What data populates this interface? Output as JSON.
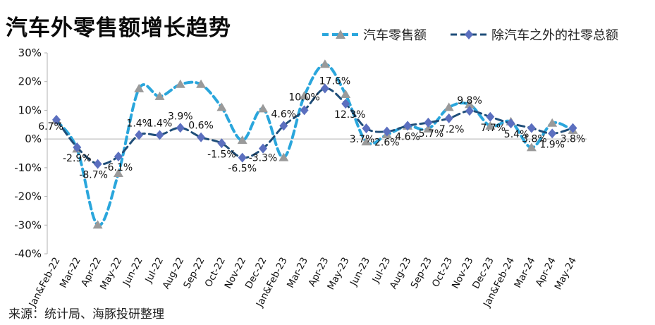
{
  "title": "汽车外零售额增长趋势",
  "source": "来源：统计局、海豚投研整理",
  "chart_data": {
    "type": "line",
    "categories": [
      "Jan&Feb-22",
      "Mar-22",
      "Apr-22",
      "May-22",
      "Jun-22",
      "Jul-22",
      "Aug-22",
      "Sep-22",
      "Oct-22",
      "Nov-22",
      "Dec-22",
      "Jan&Feb-23",
      "Mar-23",
      "Apr-23",
      "May-23",
      "Jun-23",
      "Jul-23",
      "Aug-23",
      "Sep-23",
      "Oct-23",
      "Nov-23",
      "Dec-23",
      "Jan&Feb-24",
      "Mar-24",
      "Apr-24",
      "May-24"
    ],
    "ylim": [
      -40,
      30
    ],
    "yticks": [
      -40,
      -30,
      -20,
      -10,
      0,
      10,
      20,
      30
    ],
    "ytick_labels": [
      "-40%",
      "-30%",
      "-20%",
      "-10%",
      "0%",
      "10%",
      "20%",
      "30%"
    ],
    "series": [
      {
        "name": "汽车零售额",
        "color": "#2aa6dc",
        "marker": "triangle",
        "values": [
          6.5,
          -3.5,
          -30.0,
          -12.0,
          17.5,
          14.8,
          19.0,
          19.0,
          11.0,
          -0.5,
          10.5,
          -6.5,
          15.0,
          26.0,
          15.5,
          -1.0,
          1.5,
          4.5,
          3.5,
          11.0,
          12.0,
          4.5,
          6.0,
          -3.0,
          5.5,
          3.0
        ]
      },
      {
        "name": "除汽车之外的社零总额",
        "color": "#1f4e79",
        "marker": "diamond",
        "values": [
          6.7,
          -2.9,
          -8.7,
          -6.1,
          1.4,
          1.4,
          3.9,
          0.6,
          -1.5,
          -6.5,
          -3.3,
          4.6,
          10.0,
          17.6,
          12.3,
          3.7,
          2.6,
          4.6,
          5.7,
          7.2,
          9.8,
          7.7,
          5.4,
          3.8,
          1.9,
          3.8
        ],
        "labels": [
          "6.7%",
          "-2.9%",
          "-8.7%",
          "-6.1%",
          "1.4%",
          "1.4%",
          "3.9%",
          "0.6%",
          "-1.5%",
          "-6.5%",
          "-3.3%",
          "4.6%",
          "10.0%",
          "17.6%",
          "12.3%",
          "3.7%",
          "2.6%",
          "4.6%",
          "5.7%",
          "7.2%",
          "9.8%",
          "7.7%",
          "5.4%",
          "3.8%",
          "1.9%",
          "3.8%"
        ]
      }
    ],
    "grid": false,
    "legend": "top-right"
  }
}
